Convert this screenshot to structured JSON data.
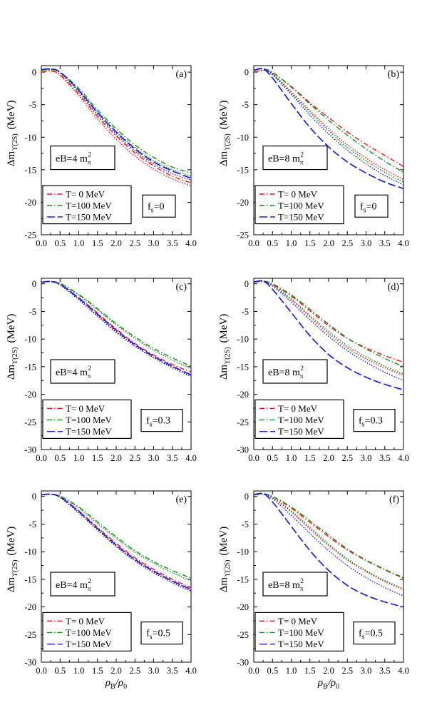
{
  "figure": {
    "xlabel_main": "ρ",
    "xlabel_sub1": "B",
    "xlabel_mid": "/ρ",
    "xlabel_sub2": "0",
    "ylabel_main": "Δm",
    "ylabel_sub": "ϒ(2S)",
    "ylabel_unit": "(MeV)"
  },
  "colors": {
    "red": "#e8141c",
    "green": "#1a8a1a",
    "blue": "#1e1ed2"
  },
  "chart_data": [
    {
      "type": "line",
      "panel": "(a)",
      "eB_label": "eB=4 m",
      "eB_sup": "2",
      "eB_sub": "π",
      "fs_main": "f",
      "fs_sub": "s",
      "fs_val": "=0",
      "xlim": [
        0,
        4
      ],
      "ylim": [
        -25,
        1
      ],
      "xticks": [
        "0.0",
        "0.5",
        "1.0",
        "1.5",
        "2.0",
        "2.5",
        "3.0",
        "3.5",
        "4.0"
      ],
      "yticks": [
        "0",
        "-5",
        "-10",
        "-15",
        "-20",
        "-25"
      ],
      "x": [
        0,
        0.25,
        0.5,
        1.0,
        1.5,
        2.0,
        2.5,
        3.0,
        3.5,
        4.0
      ],
      "legend": [
        "T= 0 MeV",
        "T=100 MeV",
        "T=150 MeV"
      ],
      "series": [
        {
          "name": "T= 0 MeV",
          "style": "dashdot",
          "color": "red",
          "values": [
            0,
            0.2,
            -0.4,
            -3.3,
            -6.8,
            -9.8,
            -12.4,
            -14.4,
            -16.0,
            -17.0
          ]
        },
        {
          "name": "",
          "style": "dotted",
          "color": "red",
          "values": [
            0,
            0.2,
            -0.5,
            -3.6,
            -7.2,
            -10.3,
            -12.9,
            -14.9,
            -16.4,
            -17.5
          ]
        },
        {
          "name": "T=100 MeV",
          "style": "dashdot",
          "color": "green",
          "values": [
            0.3,
            0.4,
            0,
            -2.5,
            -5.8,
            -8.7,
            -11.2,
            -13.1,
            -14.6,
            -15.5
          ]
        },
        {
          "name": "",
          "style": "dotted",
          "color": "green",
          "values": [
            0.3,
            0.4,
            -0.1,
            -2.8,
            -6.1,
            -9.1,
            -11.6,
            -13.6,
            -15.0,
            -16.0
          ]
        },
        {
          "name": "T=150 MeV",
          "style": "dashed",
          "color": "blue",
          "values": [
            0.4,
            0.5,
            0,
            -2.8,
            -6.2,
            -9.2,
            -11.8,
            -13.8,
            -15.2,
            -16.3
          ]
        },
        {
          "name": "",
          "style": "dotted",
          "color": "blue",
          "values": [
            0.4,
            0.5,
            -0.1,
            -3.0,
            -6.5,
            -9.5,
            -12.1,
            -14.1,
            -15.6,
            -16.6
          ]
        }
      ]
    },
    {
      "type": "line",
      "panel": "(b)",
      "eB_label": "eB=8 m",
      "eB_sup": "2",
      "eB_sub": "π",
      "fs_main": "f",
      "fs_sub": "s",
      "fs_val": "=0",
      "xlim": [
        0,
        4
      ],
      "ylim": [
        -25,
        1
      ],
      "xticks": [
        "0.0",
        "0.5",
        "1.0",
        "1.5",
        "2.0",
        "2.5",
        "3.0",
        "3.5",
        "4.0"
      ],
      "yticks": [
        "0",
        "-5",
        "-10",
        "-15",
        "-20",
        "-25"
      ],
      "x": [
        0,
        0.25,
        0.5,
        1.0,
        1.5,
        2.0,
        2.5,
        3.0,
        3.5,
        4.0
      ],
      "legend": [
        "T= 0 MeV",
        "T=100 MeV",
        "T=150 MeV"
      ],
      "series": [
        {
          "name": "T= 0 MeV",
          "style": "dashdot",
          "color": "red",
          "values": [
            0,
            0.3,
            -0.1,
            -2.2,
            -4.7,
            -7.0,
            -9.2,
            -11.1,
            -12.8,
            -14.5
          ]
        },
        {
          "name": "",
          "style": "dotted",
          "color": "red",
          "values": [
            0,
            0.3,
            -0.3,
            -3.0,
            -5.9,
            -8.7,
            -11.2,
            -13.2,
            -15.0,
            -16.5
          ]
        },
        {
          "name": "T=100 MeV",
          "style": "dashdot",
          "color": "green",
          "values": [
            0.3,
            0.5,
            0,
            -2.3,
            -4.9,
            -7.4,
            -9.7,
            -11.8,
            -13.7,
            -15.4
          ]
        },
        {
          "name": "",
          "style": "dotted",
          "color": "green",
          "values": [
            0.3,
            0.5,
            -0.2,
            -3.2,
            -6.2,
            -9.0,
            -11.6,
            -13.6,
            -15.4,
            -16.9
          ]
        },
        {
          "name": "T=150 MeV",
          "style": "dashed",
          "color": "blue",
          "values": [
            0.3,
            0.5,
            -0.9,
            -4.8,
            -8.5,
            -11.5,
            -13.8,
            -15.5,
            -16.9,
            -17.9
          ]
        },
        {
          "name": "",
          "style": "dotted",
          "color": "blue",
          "values": [
            0.3,
            0.5,
            -0.4,
            -3.4,
            -6.6,
            -9.5,
            -12.0,
            -14.1,
            -15.9,
            -17.3
          ]
        }
      ]
    },
    {
      "type": "line",
      "panel": "(c)",
      "eB_label": "eB=4 m",
      "eB_sup": "2",
      "eB_sub": "π",
      "fs_main": "f",
      "fs_sub": "s",
      "fs_val": "=0.3",
      "xlim": [
        0,
        4
      ],
      "ylim": [
        -30,
        1
      ],
      "xticks": [
        "0.0",
        "0.5",
        "1.0",
        "1.5",
        "2.0",
        "2.5",
        "3.0",
        "3.5",
        "4.0"
      ],
      "yticks": [
        "0",
        "-5",
        "-10",
        "-15",
        "-20",
        "-25",
        "-30"
      ],
      "x": [
        0,
        0.25,
        0.5,
        1.0,
        1.5,
        2.0,
        2.5,
        3.0,
        3.5,
        4.0
      ],
      "legend": [
        "T= 0 MeV",
        "T=100 MeV",
        "T=150 MeV"
      ],
      "series": [
        {
          "name": "T= 0 MeV",
          "style": "dashdot",
          "color": "red",
          "values": [
            0.3,
            0.4,
            -0.1,
            -2.5,
            -5.3,
            -8.2,
            -10.8,
            -12.9,
            -14.6,
            -16.0
          ]
        },
        {
          "name": "",
          "style": "dotted",
          "color": "red",
          "values": [
            0.3,
            0.4,
            -0.2,
            -2.8,
            -5.7,
            -8.6,
            -11.2,
            -13.3,
            -15.0,
            -16.5
          ]
        },
        {
          "name": "T=100 MeV",
          "style": "dashdot",
          "color": "green",
          "values": [
            0.3,
            0.4,
            0.1,
            -1.9,
            -4.5,
            -7.2,
            -9.6,
            -11.7,
            -13.4,
            -14.9
          ]
        },
        {
          "name": "",
          "style": "dotted",
          "color": "green",
          "values": [
            0.3,
            0.4,
            0,
            -2.1,
            -4.7,
            -7.4,
            -9.9,
            -12.0,
            -13.8,
            -15.3
          ]
        },
        {
          "name": "T=150 MeV",
          "style": "dashed",
          "color": "blue",
          "values": [
            0.3,
            0.4,
            -0.1,
            -2.6,
            -5.5,
            -8.4,
            -11.0,
            -13.1,
            -14.9,
            -16.5
          ]
        },
        {
          "name": "",
          "style": "dotted",
          "color": "blue",
          "values": [
            0.3,
            0.4,
            -0.2,
            -2.9,
            -5.9,
            -8.8,
            -11.3,
            -13.4,
            -15.2,
            -16.8
          ]
        }
      ]
    },
    {
      "type": "line",
      "panel": "(d)",
      "eB_label": "eB=8 m",
      "eB_sup": "2",
      "eB_sub": "π",
      "fs_main": "f",
      "fs_sub": "s",
      "fs_val": "=0.3",
      "xlim": [
        0,
        4
      ],
      "ylim": [
        -30,
        1
      ],
      "xticks": [
        "0.0",
        "0.5",
        "1.0",
        "1.5",
        "2.0",
        "2.5",
        "3.0",
        "3.5",
        "4.0"
      ],
      "yticks": [
        "0",
        "-5",
        "-10",
        "-15",
        "-20",
        "-25",
        "-30"
      ],
      "x": [
        0,
        0.25,
        0.5,
        1.0,
        1.5,
        2.0,
        2.5,
        3.0,
        3.5,
        4.0
      ],
      "legend": [
        "T= 0 MeV",
        "T=100 MeV",
        "T=150 MeV"
      ],
      "series": [
        {
          "name": "T= 0 MeV",
          "style": "dashdot",
          "color": "red",
          "values": [
            0.3,
            0.4,
            -0.1,
            -2.2,
            -4.9,
            -7.6,
            -9.9,
            -11.6,
            -13.0,
            -14.2
          ]
        },
        {
          "name": "",
          "style": "dotted",
          "color": "red",
          "values": [
            0.3,
            0.4,
            -0.3,
            -2.9,
            -6.0,
            -9.0,
            -11.6,
            -13.6,
            -15.2,
            -16.6
          ]
        },
        {
          "name": "T=100 MeV",
          "style": "dashdot",
          "color": "green",
          "values": [
            0.3,
            0.5,
            0,
            -2.0,
            -4.6,
            -7.3,
            -9.8,
            -11.8,
            -13.5,
            -15.0
          ]
        },
        {
          "name": "",
          "style": "dotted",
          "color": "green",
          "values": [
            0.3,
            0.5,
            -0.2,
            -2.7,
            -5.7,
            -8.6,
            -11.2,
            -13.2,
            -14.9,
            -16.3
          ]
        },
        {
          "name": "T=150 MeV",
          "style": "dashed",
          "color": "blue",
          "values": [
            0.3,
            0.5,
            -1.0,
            -5.2,
            -9.4,
            -12.8,
            -15.2,
            -16.9,
            -18.2,
            -19.2
          ]
        },
        {
          "name": "",
          "style": "dotted",
          "color": "blue",
          "values": [
            0.3,
            0.5,
            -0.4,
            -3.3,
            -6.5,
            -9.5,
            -12.1,
            -14.2,
            -16.0,
            -17.5
          ]
        }
      ]
    },
    {
      "type": "line",
      "panel": "(e)",
      "eB_label": "eB=4 m",
      "eB_sup": "2",
      "eB_sub": "π",
      "fs_main": "f",
      "fs_sub": "s",
      "fs_val": "=0.5",
      "xlim": [
        0,
        4
      ],
      "ylim": [
        -30,
        1
      ],
      "xticks": [
        "0.0",
        "0.5",
        "1.0",
        "1.5",
        "2.0",
        "2.5",
        "3.0",
        "3.5",
        "4.0"
      ],
      "yticks": [
        "0",
        "-5",
        "-10",
        "-15",
        "-20",
        "-25",
        "-30"
      ],
      "x": [
        0,
        0.25,
        0.5,
        1.0,
        1.5,
        2.0,
        2.5,
        3.0,
        3.5,
        4.0
      ],
      "legend": [
        "T= 0 MeV",
        "T=100 MeV",
        "T=150 MeV"
      ],
      "series": [
        {
          "name": "T= 0 MeV",
          "style": "dashdot",
          "color": "red",
          "values": [
            0.3,
            0.4,
            -0.1,
            -2.6,
            -5.6,
            -8.5,
            -11.1,
            -13.2,
            -15.0,
            -16.5
          ]
        },
        {
          "name": "",
          "style": "dotted",
          "color": "red",
          "values": [
            0.3,
            0.4,
            -0.2,
            -2.9,
            -6.0,
            -8.9,
            -11.5,
            -13.6,
            -15.4,
            -17.0
          ]
        },
        {
          "name": "T=100 MeV",
          "style": "dashdot",
          "color": "green",
          "values": [
            0.3,
            0.4,
            0.1,
            -1.9,
            -4.6,
            -7.3,
            -9.8,
            -11.8,
            -13.4,
            -14.8
          ]
        },
        {
          "name": "",
          "style": "dotted",
          "color": "green",
          "values": [
            0.3,
            0.4,
            0,
            -2.1,
            -4.9,
            -7.6,
            -10.1,
            -12.1,
            -13.8,
            -15.3
          ]
        },
        {
          "name": "T=150 MeV",
          "style": "dashed",
          "color": "blue",
          "values": [
            0.3,
            0.4,
            -0.1,
            -2.7,
            -5.8,
            -8.8,
            -11.4,
            -13.5,
            -15.3,
            -16.8
          ]
        },
        {
          "name": "",
          "style": "dotted",
          "color": "blue",
          "values": [
            0.3,
            0.4,
            -0.2,
            -3.0,
            -6.1,
            -9.1,
            -11.7,
            -13.8,
            -15.6,
            -17.2
          ]
        }
      ]
    },
    {
      "type": "line",
      "panel": "(f)",
      "eB_label": "eB=8 m",
      "eB_sup": "2",
      "eB_sub": "π",
      "fs_main": "f",
      "fs_sub": "s",
      "fs_val": "=0.5",
      "xlim": [
        0,
        4
      ],
      "ylim": [
        -30,
        1
      ],
      "xticks": [
        "0.0",
        "0.5",
        "1.0",
        "1.5",
        "2.0",
        "2.5",
        "3.0",
        "3.5",
        "4.0"
      ],
      "yticks": [
        "0",
        "-5",
        "-10",
        "-15",
        "-20",
        "-25",
        "-30"
      ],
      "x": [
        0,
        0.25,
        0.5,
        1.0,
        1.5,
        2.0,
        2.5,
        3.0,
        3.5,
        4.0
      ],
      "legend": [
        "T= 0 MeV",
        "T=100 MeV",
        "T=150 MeV"
      ],
      "series": [
        {
          "name": "T= 0 MeV",
          "style": "dashdot",
          "color": "red",
          "values": [
            0.3,
            0.4,
            0,
            -2.1,
            -4.7,
            -7.3,
            -9.7,
            -11.6,
            -13.3,
            -14.8
          ]
        },
        {
          "name": "",
          "style": "dotted",
          "color": "red",
          "values": [
            0.3,
            0.4,
            -0.2,
            -2.8,
            -5.9,
            -8.9,
            -11.5,
            -13.6,
            -15.4,
            -16.9
          ]
        },
        {
          "name": "T=100 MeV",
          "style": "dashdot",
          "color": "green",
          "values": [
            0.3,
            0.5,
            0,
            -1.9,
            -4.4,
            -7.0,
            -9.5,
            -11.5,
            -13.2,
            -14.7
          ]
        },
        {
          "name": "",
          "style": "dotted",
          "color": "green",
          "values": [
            0.3,
            0.5,
            -0.2,
            -2.6,
            -5.6,
            -8.6,
            -11.3,
            -13.4,
            -15.2,
            -16.7
          ]
        },
        {
          "name": "T=150 MeV",
          "style": "dashed",
          "color": "blue",
          "values": [
            0.3,
            0.5,
            -1.0,
            -5.4,
            -9.8,
            -13.4,
            -16.1,
            -17.9,
            -19.1,
            -20.0
          ]
        },
        {
          "name": "",
          "style": "dotted",
          "color": "blue",
          "values": [
            0.3,
            0.5,
            -0.4,
            -3.4,
            -6.7,
            -9.8,
            -12.5,
            -14.7,
            -16.5,
            -18.0
          ]
        }
      ]
    }
  ]
}
